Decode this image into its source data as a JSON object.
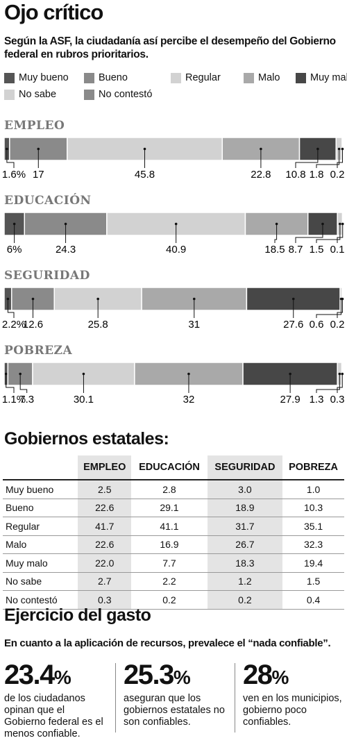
{
  "title": "Ojo crítico",
  "subtitle": "Según la ASF, la ciudadanía así percibe el desempeño del Gobierno federal en rubros prioritarios.",
  "legend": [
    {
      "name": "Muy bueno",
      "color": "#555555"
    },
    {
      "name": "Bueno",
      "color": "#8a8a8a"
    },
    {
      "name": "Regular",
      "color": "#d2d2d2"
    },
    {
      "name": "Malo",
      "color": "#a9a9a9"
    },
    {
      "name": "Muy malo",
      "color": "#474747"
    },
    {
      "name": "No sabe",
      "color": "#d2d2d2"
    },
    {
      "name": "No contestó",
      "color": "#8a8a8a"
    }
  ],
  "chart_data": [
    {
      "type": "stacked-bar",
      "title": "EMPLEO",
      "values": [
        1.6,
        17,
        45.8,
        22.8,
        10.8,
        1.8,
        0.2
      ],
      "value_labels": [
        "1.6%",
        "17",
        "45.8",
        "22.8",
        "10.8",
        "1.8",
        "0.2"
      ]
    },
    {
      "type": "stacked-bar",
      "title": "EDUCACIÓN",
      "values": [
        6,
        24.3,
        40.9,
        18.5,
        8.7,
        1.5,
        0.1
      ],
      "value_labels": [
        "6%",
        "24.3",
        "40.9",
        "18.5",
        "8.7",
        "1.5",
        "0.1"
      ]
    },
    {
      "type": "stacked-bar",
      "title": "SEGURIDAD",
      "values": [
        2.2,
        12.6,
        25.8,
        31,
        27.6,
        0.6,
        0.2
      ],
      "value_labels": [
        "2.2%",
        "12.6",
        "25.8",
        "31",
        "27.6",
        "0.6",
        "0.2"
      ]
    },
    {
      "type": "stacked-bar",
      "title": "POBREZA",
      "values": [
        1.1,
        7.3,
        30.1,
        32,
        27.9,
        1.3,
        0.3
      ],
      "value_labels": [
        "1.1%",
        "7.3",
        "30.1",
        "32",
        "27.9",
        "1.3",
        "0.3"
      ]
    }
  ],
  "table": {
    "title": "Gobiernos estatales:",
    "columns": [
      "EMPLEO",
      "EDUCACIÓN",
      "SEGURIDAD",
      "POBREZA"
    ],
    "rows": [
      [
        "Muy bueno",
        "2.5",
        "2.8",
        "3.0",
        "1.0"
      ],
      [
        "Bueno",
        "22.6",
        "29.1",
        "18.9",
        "10.3"
      ],
      [
        "Regular",
        "41.7",
        "41.1",
        "31.7",
        "35.1"
      ],
      [
        "Malo",
        "22.6",
        "16.9",
        "26.7",
        "32.3"
      ],
      [
        "Muy malo",
        "22.0",
        "7.7",
        "18.3",
        "19.4"
      ],
      [
        "No sabe",
        "2.7",
        "2.2",
        "1.2",
        "1.5"
      ],
      [
        "No contestó",
        "0.3",
        "0.2",
        "0.2",
        "0.4"
      ]
    ]
  },
  "gasto": {
    "title": "Ejercicio del gasto",
    "subtitle": "En cuanto a la aplicación de recursos, prevalece el “nada confiable”.",
    "items": [
      {
        "value": "23.4",
        "unit": "%",
        "text": "de los ciudadanos opinan que el Gobierno federal es el menos confiable."
      },
      {
        "value": "25.3",
        "unit": "%",
        "text": "aseguran que los gobiernos estatales no son confiables."
      },
      {
        "value": "28",
        "unit": "%",
        "text": "ven en los municipios, gobierno poco confiables."
      }
    ]
  }
}
